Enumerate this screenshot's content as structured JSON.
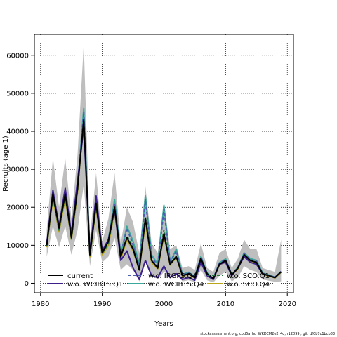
{
  "chart_data": {
    "type": "line",
    "title": "",
    "xlabel": "Years",
    "ylabel": "Recruits (age 1)",
    "xlim": [
      1979,
      2021
    ],
    "ylim": [
      -2500,
      65500
    ],
    "xticks": [
      1980,
      1990,
      2000,
      2010,
      2020
    ],
    "yticks": [
      0,
      10000,
      20000,
      30000,
      40000,
      50000,
      60000
    ],
    "grid": true,
    "legend_position": "bottom-left",
    "x": [
      1981,
      1982,
      1983,
      1984,
      1985,
      1986,
      1987,
      1988,
      1989,
      1990,
      1991,
      1992,
      1993,
      1994,
      1995,
      1996,
      1997,
      1998,
      1999,
      2000,
      2001,
      2002,
      2003,
      2004,
      2005,
      2006,
      2007,
      2008,
      2009,
      2010,
      2011,
      2012,
      2013,
      2014,
      2015,
      2016,
      2017,
      2018,
      2019
    ],
    "band": {
      "lower": [
        7000,
        15000,
        9500,
        15000,
        7500,
        14000,
        26000,
        4500,
        14000,
        5500,
        7000,
        12000,
        3500,
        5000,
        3500,
        500,
        6000,
        2500,
        1000,
        3000,
        2000,
        2500,
        500,
        800,
        300,
        3500,
        800,
        200,
        2000,
        3000,
        500,
        1500,
        4500,
        3500,
        3000,
        1000,
        700,
        400,
        500
      ],
      "upper": [
        14000,
        33000,
        20000,
        33000,
        17000,
        34000,
        63000,
        12000,
        29000,
        11000,
        17000,
        29000,
        10500,
        20000,
        16000,
        8000,
        25500,
        10500,
        8000,
        21500,
        9000,
        10000,
        4000,
        4500,
        3500,
        10500,
        4000,
        3000,
        8000,
        9000,
        4000,
        6500,
        11500,
        9000,
        9000,
        4000,
        3500,
        3000,
        11500
      ]
    },
    "series": [
      {
        "name": "current",
        "color": "#000000",
        "style": "solid",
        "values": [
          10000,
          23500,
          14500,
          23500,
          12000,
          25000,
          43000,
          7500,
          21000,
          8000,
          11000,
          20000,
          7000,
          12000,
          9000,
          3500,
          17000,
          6000,
          4000,
          13000,
          5000,
          7000,
          2000,
          2500,
          1500,
          6500,
          2500,
          1200,
          5000,
          6000,
          2200,
          4000,
          7500,
          6000,
          5500,
          2500,
          2000,
          1500,
          3000
        ]
      },
      {
        "name": "w.o. WCIBTS.Q1",
        "color": "#3b1f8a",
        "style": "solid",
        "values": [
          10500,
          24500,
          15000,
          25000,
          13000,
          27000,
          41000,
          8000,
          23000,
          8500,
          11500,
          19500,
          6000,
          8500,
          4000,
          1000,
          6000,
          2000,
          1500,
          4500,
          1500,
          2500,
          1000,
          1500,
          800,
          5500,
          2000,
          1000,
          5000,
          5500,
          2000,
          4000,
          7000,
          5500,
          5000,
          2500,
          2000,
          1500,
          3000
        ]
      },
      {
        "name": "w.o. IRGFS.Q4",
        "color": "#4a5fb0",
        "style": "dashed",
        "values": [
          10000,
          24000,
          14500,
          24000,
          12500,
          25500,
          45000,
          7500,
          22000,
          8000,
          11000,
          21000,
          7500,
          14500,
          10000,
          4500,
          22000,
          7000,
          4500,
          19500,
          5500,
          8500,
          2200,
          2800,
          1700,
          7000,
          2600,
          1300,
          5300,
          6300,
          2300,
          4200,
          7800,
          6200,
          5800,
          2600,
          2100,
          1600,
          3100
        ]
      },
      {
        "name": "w.o. WCIBTS.Q4",
        "color": "#3aa89a",
        "style": "solid",
        "values": [
          10000,
          24000,
          14500,
          24000,
          12500,
          25500,
          46000,
          7500,
          22000,
          8000,
          11500,
          22000,
          7500,
          15000,
          11000,
          5000,
          23000,
          7500,
          5000,
          20500,
          5500,
          9000,
          2300,
          2900,
          1800,
          7000,
          2700,
          1300,
          5400,
          6400,
          2300,
          4200,
          8000,
          6500,
          6000,
          2700,
          2200,
          1600,
          3100
        ]
      },
      {
        "name": "w.o. SCO.Q1",
        "color": "#1f7a3a",
        "style": "dashed",
        "values": [
          9800,
          23000,
          14000,
          23000,
          11800,
          24500,
          44000,
          7300,
          20500,
          7800,
          10500,
          19500,
          6800,
          12500,
          9500,
          3800,
          17500,
          6000,
          4000,
          14000,
          5000,
          7200,
          2000,
          2600,
          1500,
          6600,
          2500,
          1200,
          5000,
          6000,
          2200,
          4000,
          7500,
          6000,
          5500,
          2500,
          2000,
          1500,
          3000
        ]
      },
      {
        "name": "w.o. SCO.Q4",
        "color": "#b8a51a",
        "style": "solid",
        "values": [
          9500,
          22500,
          13500,
          22500,
          11500,
          24000,
          44500,
          7000,
          20000,
          7500,
          10000,
          19000,
          6500,
          11500,
          8500,
          3500,
          16000,
          5500,
          3800,
          12500,
          4800,
          6800,
          1900,
          2400,
          1400,
          6300,
          2400,
          1100,
          4800,
          5800,
          2100,
          3800,
          7200,
          5800,
          5300,
          2400,
          1900,
          1400,
          2900
        ]
      }
    ]
  },
  "footer_text": "stockassessment.org, cod6a_hd_WKDEM2e2_4q, r12099 , git: df0b7c1bcb83"
}
